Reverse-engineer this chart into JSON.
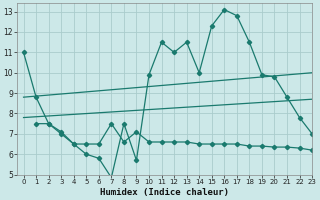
{
  "xlabel": "Humidex (Indice chaleur)",
  "bg_color": "#cce8e8",
  "grid_color": "#aacccc",
  "line_color": "#1a7a6e",
  "xlim": [
    -0.5,
    23
  ],
  "ylim": [
    5,
    13.4
  ],
  "xticks": [
    0,
    1,
    2,
    3,
    4,
    5,
    6,
    7,
    8,
    9,
    10,
    11,
    12,
    13,
    14,
    15,
    16,
    17,
    18,
    19,
    20,
    21,
    22,
    23
  ],
  "yticks": [
    5,
    6,
    7,
    8,
    9,
    10,
    11,
    12,
    13
  ],
  "line1_x": [
    0,
    1,
    2,
    3,
    4,
    5,
    6,
    7,
    8,
    9,
    10,
    11,
    12,
    13,
    14,
    15,
    16,
    17,
    18,
    19,
    20,
    21,
    22,
    23
  ],
  "line1_y": [
    11.0,
    8.8,
    7.5,
    7.0,
    6.5,
    6.0,
    5.8,
    4.85,
    7.5,
    5.7,
    9.9,
    11.5,
    11.0,
    11.5,
    10.0,
    12.3,
    13.1,
    12.8,
    11.5,
    9.9,
    9.8,
    8.8,
    7.8,
    7.0
  ],
  "line2_x": [
    0,
    23
  ],
  "line2_y": [
    8.8,
    10.0
  ],
  "line3_x": [
    0,
    23
  ],
  "line3_y": [
    7.8,
    8.7
  ],
  "line4_x": [
    1,
    2,
    3,
    4,
    5,
    6,
    7,
    8,
    9,
    10,
    11,
    12,
    13,
    14,
    15,
    16,
    17,
    18,
    19,
    20,
    21,
    22,
    23
  ],
  "line4_y": [
    7.5,
    7.5,
    7.1,
    6.5,
    6.5,
    6.5,
    7.5,
    6.6,
    7.1,
    6.6,
    6.6,
    6.6,
    6.6,
    6.5,
    6.5,
    6.5,
    6.5,
    6.4,
    6.4,
    6.35,
    6.35,
    6.3,
    6.2
  ]
}
